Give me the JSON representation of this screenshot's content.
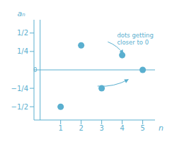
{
  "chart_data": {
    "type": "scatter",
    "x": [
      1,
      2,
      3,
      4,
      5
    ],
    "values": [
      -0.5,
      0.333,
      -0.25,
      0.2,
      0.0
    ],
    "color": "#5aafcf",
    "xlim": [
      -0.3,
      5.6
    ],
    "ylim": [
      -0.68,
      0.68
    ],
    "xticks": [
      1,
      2,
      3,
      4,
      5
    ],
    "yticks": [
      {
        "value": -0.5,
        "label": "−1/2"
      },
      {
        "value": -0.25,
        "label": "−1/4"
      },
      {
        "value": 0.25,
        "label": "1/4"
      },
      {
        "value": 0.5,
        "label": "1/2"
      }
    ],
    "x_label": "n",
    "y_label": "aₙ",
    "annotations": [
      "dots getting\ncloser to 0",
      "0"
    ],
    "grid": false
  }
}
